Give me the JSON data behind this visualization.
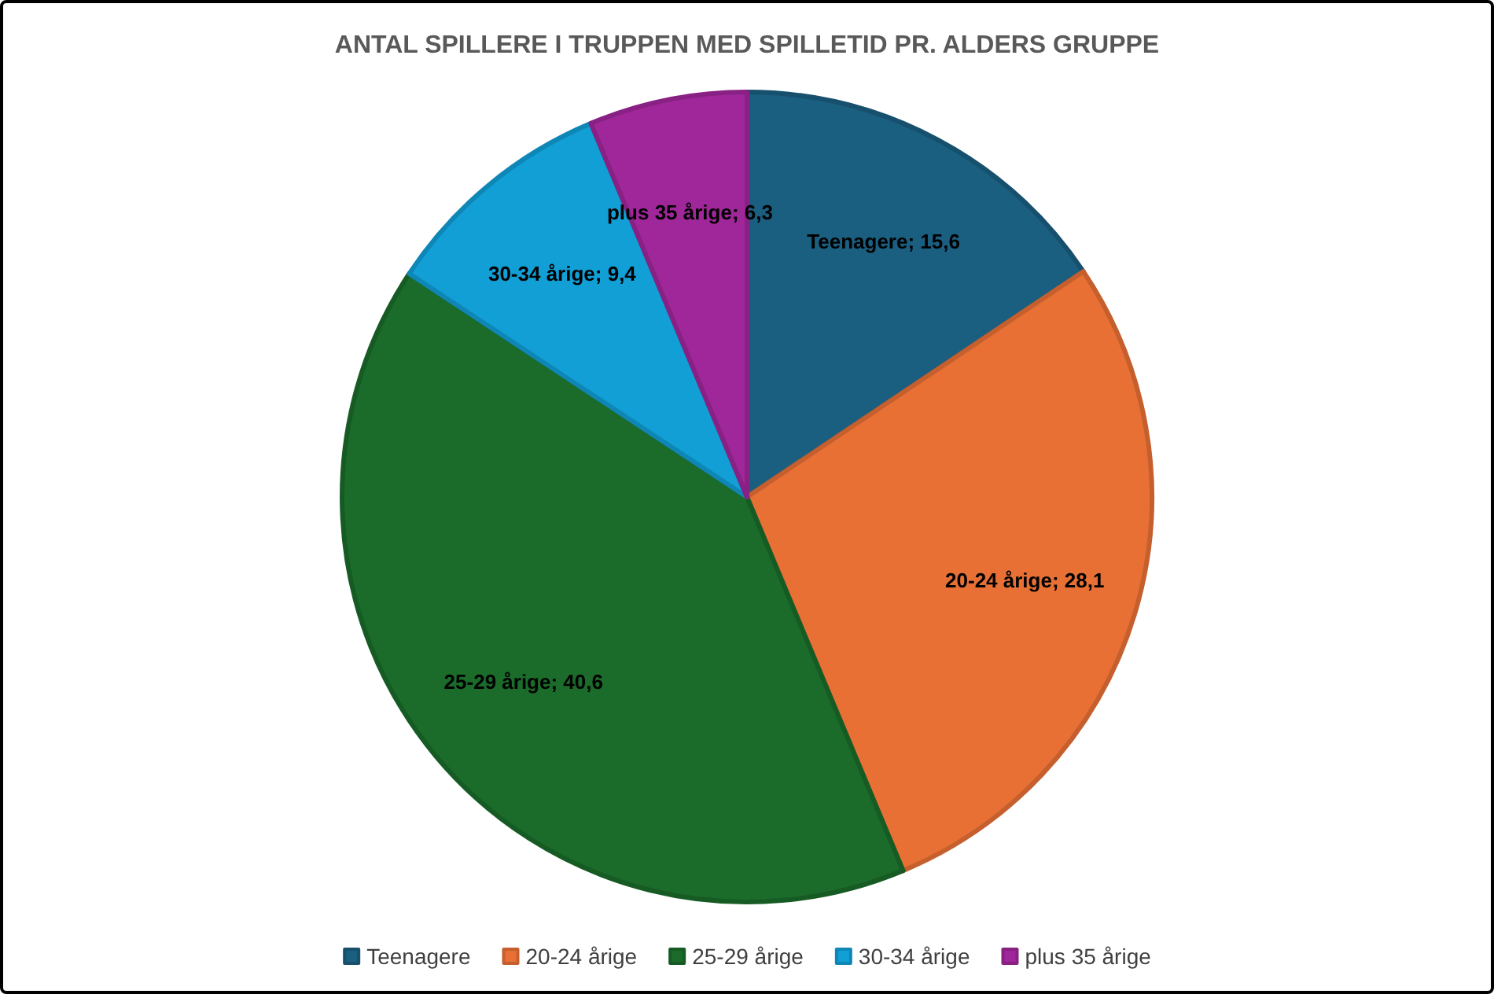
{
  "chart_data": {
    "type": "pie",
    "title": "ANTAL SPILLERE I TRUPPEN MED SPILLETID PR. ALDERS GRUPPE",
    "categories": [
      "Teenagere",
      "20-24 årige",
      "25-29 årige",
      "30-34 årige",
      "plus 35 årige"
    ],
    "values": [
      15.6,
      28.1,
      40.6,
      9.4,
      6.3
    ],
    "value_labels": [
      "Teenagere; 15,6",
      "20-24 årige; 28,1",
      "25-29 årige; 40,6",
      "30-34 årige; 9,4",
      "plus 35 årige; 6,3"
    ],
    "colors": [
      "#1a5e80",
      "#e87035",
      "#1b6b2a",
      "#119fd6",
      "#a0279a"
    ],
    "legend": "bottom"
  }
}
